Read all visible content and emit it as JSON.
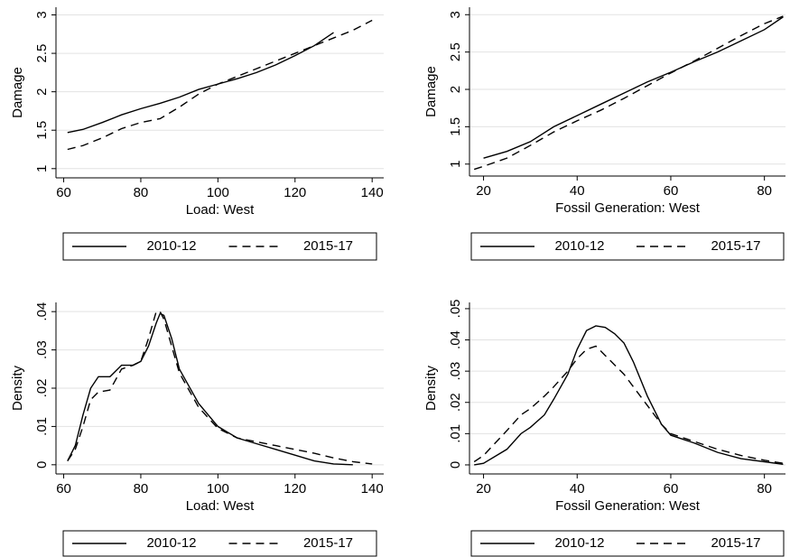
{
  "chart_data": [
    {
      "type": "line",
      "xlabel": "Load: West",
      "ylabel": "Damage",
      "x": [
        61,
        65,
        70,
        75,
        80,
        85,
        90,
        95,
        100,
        105,
        110,
        115,
        120,
        125,
        130,
        135,
        140
      ],
      "series": [
        {
          "name": "2010-12",
          "color": "#000000",
          "line_style": "solid",
          "values": [
            1.47,
            1.51,
            1.6,
            1.7,
            1.78,
            1.85,
            1.93,
            2.03,
            2.1,
            2.17,
            2.25,
            2.35,
            2.47,
            2.6,
            2.77,
            null,
            null
          ]
        },
        {
          "name": "2015-17",
          "color": "#000000",
          "line_style": "dashed",
          "values": [
            1.25,
            1.3,
            1.4,
            1.52,
            1.6,
            1.65,
            1.8,
            1.97,
            2.1,
            2.2,
            2.3,
            2.4,
            2.5,
            2.6,
            2.7,
            2.8,
            2.93
          ]
        }
      ],
      "xlim": [
        58,
        143
      ],
      "ylim": [
        0.88,
        3.1
      ],
      "xticks": [
        60,
        80,
        100,
        120,
        140
      ],
      "yticks": [
        1,
        1.5,
        2,
        2.5,
        3
      ],
      "grid": true
    },
    {
      "type": "line",
      "xlabel": "Fossil Generation: West",
      "ylabel": "Damage",
      "x": [
        18,
        20,
        25,
        30,
        35,
        40,
        45,
        50,
        55,
        60,
        65,
        70,
        75,
        80,
        84
      ],
      "series": [
        {
          "name": "2010-12",
          "color": "#000000",
          "line_style": "solid",
          "values": [
            null,
            1.08,
            1.17,
            1.3,
            1.5,
            1.65,
            1.8,
            1.95,
            2.1,
            2.23,
            2.37,
            2.5,
            2.65,
            2.8,
            2.97
          ]
        },
        {
          "name": "2015-17",
          "color": "#000000",
          "line_style": "dashed",
          "values": [
            0.93,
            0.97,
            1.08,
            1.25,
            1.43,
            1.58,
            1.72,
            1.88,
            2.05,
            2.22,
            2.38,
            2.55,
            2.72,
            2.88,
            2.98
          ]
        }
      ],
      "xlim": [
        17,
        84.5
      ],
      "ylim": [
        0.84,
        3.1
      ],
      "xticks": [
        20,
        40,
        60,
        80
      ],
      "yticks": [
        1,
        1.5,
        2,
        2.5,
        3
      ],
      "grid": true
    },
    {
      "type": "line",
      "xlabel": "Load: West",
      "ylabel": "Density",
      "x": [
        61,
        63,
        65,
        67,
        69,
        72,
        75,
        78,
        80,
        82,
        84,
        85,
        86,
        88,
        90,
        95,
        100,
        105,
        110,
        115,
        120,
        125,
        130,
        135,
        140
      ],
      "series": [
        {
          "name": "2010-12",
          "color": "#000000",
          "line_style": "solid",
          "values": [
            0.001,
            0.005,
            0.013,
            0.02,
            0.023,
            0.023,
            0.026,
            0.026,
            0.027,
            0.031,
            0.037,
            0.0395,
            0.039,
            0.033,
            0.025,
            0.016,
            0.01,
            0.007,
            0.0055,
            0.004,
            0.0025,
            0.001,
            0.0002,
            0,
            null
          ]
        },
        {
          "name": "2015-17",
          "color": "#000000",
          "line_style": "dashed",
          "values": [
            0.001,
            0.004,
            0.01,
            0.017,
            0.019,
            0.0195,
            0.025,
            0.026,
            0.027,
            0.033,
            0.04,
            0.04,
            0.038,
            0.031,
            0.024,
            0.015,
            0.0095,
            0.007,
            0.006,
            0.005,
            0.004,
            0.003,
            0.0018,
            0.0008,
            0.0002
          ]
        }
      ],
      "xlim": [
        58,
        143
      ],
      "ylim": [
        -0.0024,
        0.0424
      ],
      "xticks": [
        60,
        80,
        100,
        120,
        140
      ],
      "yticks": [
        0,
        {
          "value": 0.01,
          "label": ".01"
        },
        {
          "value": 0.02,
          "label": ".02"
        },
        {
          "value": 0.03,
          "label": ".03"
        },
        {
          "value": 0.04,
          "label": ".04"
        }
      ],
      "grid": true
    },
    {
      "type": "line",
      "xlabel": "Fossil Generation: West",
      "ylabel": "Density",
      "x": [
        18,
        20,
        25,
        28,
        30,
        33,
        35,
        38,
        40,
        42,
        44,
        46,
        48,
        50,
        52,
        55,
        58,
        60,
        65,
        70,
        75,
        80,
        84
      ],
      "series": [
        {
          "name": "2010-12",
          "color": "#000000",
          "line_style": "solid",
          "values": [
            0,
            0.0005,
            0.005,
            0.01,
            0.012,
            0.016,
            0.021,
            0.029,
            0.037,
            0.043,
            0.0445,
            0.044,
            0.042,
            0.039,
            0.033,
            0.022,
            0.013,
            0.0095,
            0.007,
            0.004,
            0.002,
            0.001,
            0.0002
          ]
        },
        {
          "name": "2015-17",
          "color": "#000000",
          "line_style": "dashed",
          "values": [
            0.001,
            0.003,
            0.011,
            0.016,
            0.018,
            0.022,
            0.025,
            0.03,
            0.034,
            0.037,
            0.038,
            0.035,
            0.032,
            0.029,
            0.025,
            0.019,
            0.013,
            0.01,
            0.0075,
            0.005,
            0.003,
            0.0015,
            0.0005
          ]
        }
      ],
      "xlim": [
        17,
        84.5
      ],
      "ylim": [
        -0.0029,
        0.052
      ],
      "xticks": [
        20,
        40,
        60,
        80
      ],
      "yticks": [
        0,
        {
          "value": 0.01,
          "label": ".01"
        },
        {
          "value": 0.02,
          "label": ".02"
        },
        {
          "value": 0.03,
          "label": ".03"
        },
        {
          "value": 0.04,
          "label": ".04"
        },
        {
          "value": 0.05,
          "label": ".05"
        }
      ],
      "grid": true
    }
  ]
}
